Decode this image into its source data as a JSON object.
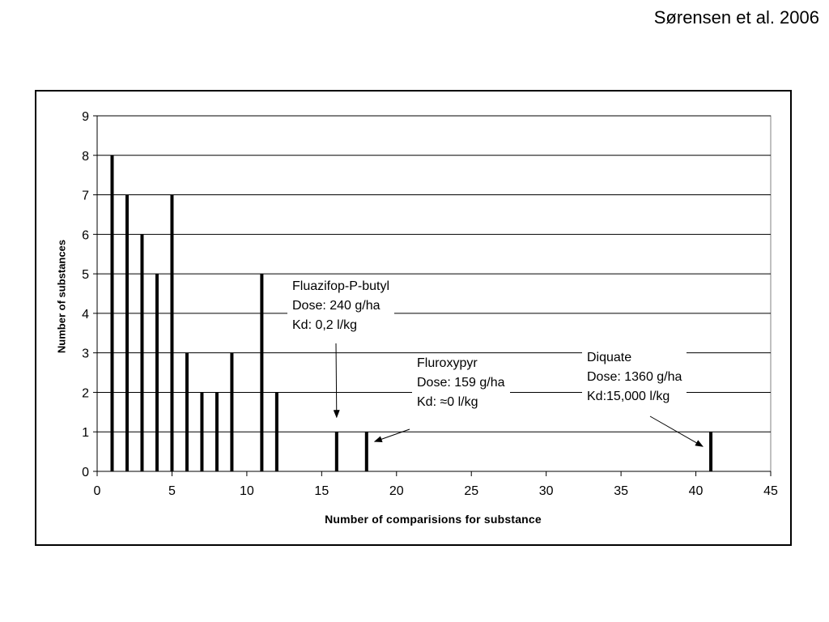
{
  "citation": "Sørensen et al. 2006",
  "chart_data": {
    "type": "bar",
    "xlabel": "Number of comparisions for substance",
    "ylabel": "Number of substances",
    "xlim": [
      0,
      45
    ],
    "ylim": [
      0,
      9
    ],
    "xticks": [
      0,
      5,
      10,
      15,
      20,
      25,
      30,
      35,
      40,
      45
    ],
    "yticks": [
      0,
      1,
      2,
      3,
      4,
      5,
      6,
      7,
      8,
      9
    ],
    "grid": "horizontal",
    "legend": "none",
    "bar_color": "#000000",
    "x": [
      1,
      2,
      3,
      4,
      5,
      6,
      7,
      8,
      9,
      11,
      12,
      16,
      18,
      41
    ],
    "values": [
      8,
      7,
      6,
      5,
      7,
      3,
      2,
      2,
      3,
      5,
      2,
      1,
      1,
      1
    ],
    "annotations": [
      {
        "lines": [
          "Fluazifop-P-butyl",
          "Dose: 240 g/ha",
          "Kd: 0,2 l/kg"
        ],
        "points_to": [
          16,
          1
        ]
      },
      {
        "lines": [
          "Fluroxypyr",
          "Dose: 159 g/ha",
          "Kd: ≈0 l/kg"
        ],
        "points_to": [
          18,
          1
        ]
      },
      {
        "lines": [
          "Diquate",
          "Dose: 1360 g/ha",
          "Kd:15,000 l/kg"
        ],
        "points_to": [
          41,
          1
        ]
      }
    ]
  }
}
